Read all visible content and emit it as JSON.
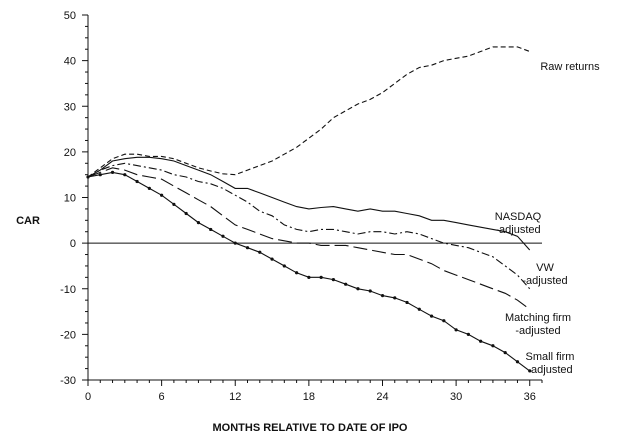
{
  "chart_data": {
    "type": "line",
    "title": "",
    "xlabel": "MONTHS RELATIVE TO DATE OF IPO",
    "ylabel": "CAR",
    "xlim": [
      0,
      37
    ],
    "ylim": [
      -30,
      50
    ],
    "x_ticks": [
      0,
      6,
      12,
      18,
      24,
      30,
      36
    ],
    "y_ticks": [
      50,
      40,
      30,
      20,
      10,
      0,
      -10,
      -20,
      -30
    ],
    "reference_line_y": 0,
    "grid": false,
    "legend": "labels placed next to line ends on the right",
    "series": [
      {
        "name": "Raw returns",
        "label_lines": [
          "Raw returns"
        ],
        "style": "dashed",
        "x": [
          0,
          1,
          2,
          3,
          4,
          5,
          6,
          7,
          8,
          9,
          10,
          11,
          12,
          13,
          14,
          15,
          16,
          17,
          18,
          19,
          20,
          21,
          22,
          23,
          24,
          25,
          26,
          27,
          28,
          29,
          30,
          31,
          32,
          33,
          34,
          35,
          36
        ],
        "values": [
          14.5,
          16.5,
          18.5,
          19.5,
          19.5,
          19,
          19,
          18.5,
          17.5,
          16.5,
          15.8,
          15.2,
          15,
          16,
          17,
          18,
          19.5,
          21,
          23,
          25,
          27.5,
          29,
          30.5,
          31.5,
          33,
          35,
          37,
          38.5,
          39,
          40,
          40.5,
          41,
          42,
          43,
          43,
          43,
          42
        ]
      },
      {
        "name": "NASDAQ -adjusted",
        "label_lines": [
          "NASDAQ",
          "-adjusted"
        ],
        "style": "solid",
        "x": [
          0,
          1,
          2,
          3,
          4,
          5,
          6,
          7,
          8,
          9,
          10,
          11,
          12,
          13,
          14,
          15,
          16,
          17,
          18,
          19,
          20,
          21,
          22,
          23,
          24,
          25,
          26,
          27,
          28,
          29,
          30,
          31,
          32,
          33,
          34,
          35,
          36
        ],
        "values": [
          14.5,
          16,
          18,
          18.5,
          18.8,
          18.8,
          18.5,
          18,
          17,
          16,
          15,
          13.5,
          12,
          12,
          11,
          10,
          9,
          8,
          7.5,
          7.8,
          8,
          7.5,
          7,
          7.5,
          7,
          7,
          6.5,
          6,
          5,
          5,
          4.5,
          4,
          3.5,
          3,
          2.5,
          1.5,
          -1.5
        ]
      },
      {
        "name": "VW -adjusted",
        "label_lines": [
          "VW",
          "-adjusted"
        ],
        "style": "dashdot",
        "x": [
          0,
          1,
          2,
          3,
          4,
          5,
          6,
          7,
          8,
          9,
          10,
          11,
          12,
          13,
          14,
          15,
          16,
          17,
          18,
          19,
          20,
          21,
          22,
          23,
          24,
          25,
          26,
          27,
          28,
          29,
          30,
          31,
          32,
          33,
          34,
          35,
          36
        ],
        "values": [
          14.5,
          16,
          17,
          17.5,
          17,
          16.5,
          16,
          15,
          14.5,
          13.5,
          13,
          12,
          10.5,
          9,
          7,
          6,
          4,
          3,
          2.5,
          3,
          3,
          2.5,
          2,
          2.5,
          2.5,
          2,
          2.5,
          2,
          1,
          0,
          -0.5,
          -1,
          -2,
          -3,
          -5,
          -7,
          -10
        ]
      },
      {
        "name": "Matching firm -adjusted",
        "label_lines": [
          "Matching firm",
          "-adjusted"
        ],
        "style": "longdash",
        "x": [
          0,
          1,
          2,
          3,
          4,
          5,
          6,
          7,
          8,
          9,
          10,
          11,
          12,
          13,
          14,
          15,
          16,
          17,
          18,
          19,
          20,
          21,
          22,
          23,
          24,
          25,
          26,
          27,
          28,
          29,
          30,
          31,
          32,
          33,
          34,
          35,
          36
        ],
        "values": [
          14.5,
          15.5,
          16.5,
          16,
          15,
          14.5,
          14,
          12.5,
          11,
          9.5,
          8,
          6,
          4,
          3,
          2,
          1,
          0.5,
          0,
          0,
          -0.5,
          -0.5,
          -0.5,
          -1,
          -1.5,
          -2,
          -2.5,
          -2.5,
          -3.5,
          -4.5,
          -6,
          -7,
          -8,
          -9,
          -10,
          -11,
          -12.5,
          -14.5
        ]
      },
      {
        "name": "Small firm -adjusted",
        "label_lines": [
          "Small firm",
          "-adjusted"
        ],
        "style": "solid-markers",
        "x": [
          0,
          1,
          2,
          3,
          4,
          5,
          6,
          7,
          8,
          9,
          10,
          11,
          12,
          13,
          14,
          15,
          16,
          17,
          18,
          19,
          20,
          21,
          22,
          23,
          24,
          25,
          26,
          27,
          28,
          29,
          30,
          31,
          32,
          33,
          34,
          35,
          36
        ],
        "values": [
          14.5,
          15,
          15.5,
          15,
          13.5,
          12,
          10.5,
          8.5,
          6.5,
          4.5,
          3,
          1.5,
          0,
          -1,
          -2,
          -3.5,
          -5,
          -6.5,
          -7.5,
          -7.5,
          -8,
          -9,
          -10,
          -10.5,
          -11.5,
          -12,
          -13,
          -14.5,
          -16,
          -17,
          -19,
          -20,
          -21.5,
          -22.5,
          -24,
          -26,
          -28
        ]
      }
    ]
  }
}
